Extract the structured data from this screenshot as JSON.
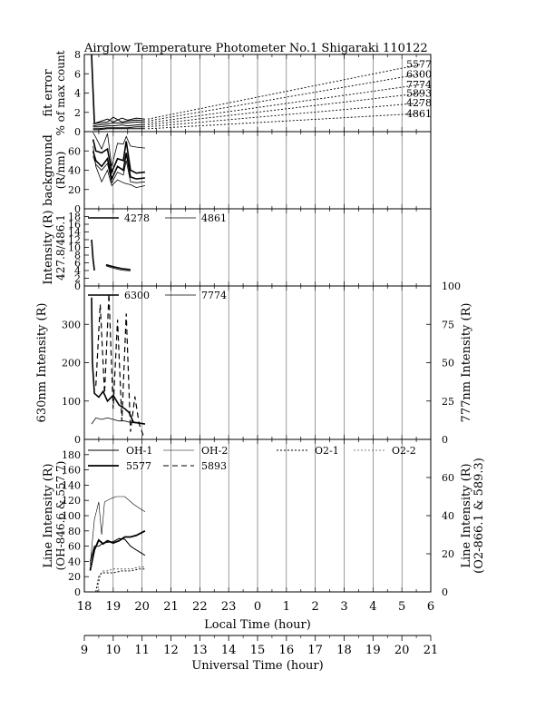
{
  "title": "Airglow Temperature Photometer No.1  Shigaraki  110122",
  "chart_data": [
    {
      "name": "fit-error",
      "type": "line",
      "ylabel": [
        "fit error",
        "% of max count"
      ],
      "ylim": [
        0,
        8
      ],
      "yticks": [
        0,
        2,
        4,
        6,
        8
      ],
      "series": [
        {
          "name": "5577",
          "x": [
            18.3,
            18.5,
            18.8,
            19.0,
            19.3,
            19.5,
            19.8,
            20.1
          ],
          "y": [
            0.8,
            1.0,
            1.3,
            1.0,
            1.4,
            1.2,
            1.4,
            1.3
          ],
          "extrap": [
            [
              20.2,
              1.3
            ],
            [
              29.7,
              7.0
            ]
          ]
        },
        {
          "name": "6300",
          "x": [
            18.3,
            18.5,
            18.8,
            19.0,
            19.3,
            19.5,
            19.8,
            20.1
          ],
          "y": [
            0.8,
            0.9,
            1.0,
            1.5,
            1.0,
            1.1,
            1.2,
            1.1
          ],
          "extrap": [
            [
              20.2,
              1.1
            ],
            [
              29.7,
              6.0
            ]
          ]
        },
        {
          "name": "7774",
          "x": [
            18.3,
            18.5,
            18.8,
            19.0,
            19.3,
            19.5,
            19.8,
            20.1
          ],
          "y": [
            0.6,
            0.7,
            0.8,
            0.9,
            0.9,
            0.9,
            1.0,
            0.9
          ],
          "extrap": [
            [
              20.2,
              0.9
            ],
            [
              29.7,
              4.9
            ]
          ]
        },
        {
          "name": "5893",
          "x": [
            18.3,
            18.5,
            18.8,
            19.0,
            19.3,
            19.5,
            19.8,
            20.1
          ],
          "y": [
            0.5,
            0.5,
            0.6,
            0.6,
            0.7,
            0.6,
            0.7,
            0.7
          ],
          "extrap": [
            [
              20.2,
              0.7
            ],
            [
              29.7,
              4.0
            ]
          ]
        },
        {
          "name": "4278",
          "x": [
            18.3,
            18.5,
            18.8,
            19.0,
            19.3,
            19.5,
            19.8,
            20.1
          ],
          "y": [
            0.3,
            0.3,
            0.4,
            0.4,
            0.4,
            0.4,
            0.5,
            0.5
          ],
          "extrap": [
            [
              20.2,
              0.5
            ],
            [
              29.7,
              3.0
            ]
          ]
        },
        {
          "name": "4861",
          "x": [
            18.3,
            18.5,
            18.8,
            19.0,
            19.3,
            19.5,
            19.8,
            20.1
          ],
          "y": [
            0.2,
            0.2,
            0.3,
            0.3,
            0.3,
            0.3,
            0.3,
            0.3
          ],
          "extrap": [
            [
              20.2,
              0.3
            ],
            [
              29.7,
              1.9
            ]
          ]
        }
      ],
      "spike": {
        "x": [
          18.25,
          18.27,
          18.35
        ],
        "y": [
          8,
          6.5,
          0.9
        ]
      }
    },
    {
      "name": "background",
      "type": "line",
      "ylabel": [
        "background",
        "(R/nm)"
      ],
      "ylim": [
        0,
        80
      ],
      "yticks": [
        0,
        20,
        40,
        60
      ],
      "series": [
        {
          "x": [
            18.3,
            18.4,
            18.6,
            18.8,
            18.95,
            19.15,
            19.35,
            19.45,
            19.6,
            19.8,
            20.1
          ],
          "y": [
            79,
            74,
            62,
            78,
            44,
            68,
            67,
            75,
            65,
            64,
            63
          ],
          "width": 0.8
        },
        {
          "x": [
            18.3,
            18.4,
            18.6,
            18.8,
            18.95,
            19.15,
            19.35,
            19.45,
            19.6,
            19.8,
            20.1
          ],
          "y": [
            72,
            60,
            58,
            62,
            38,
            52,
            50,
            70,
            40,
            37,
            38
          ],
          "width": 1.6
        },
        {
          "x": [
            18.3,
            18.4,
            18.6,
            18.8,
            18.95,
            19.15,
            19.35,
            19.45,
            19.6,
            19.8,
            20.1
          ],
          "y": [
            60,
            50,
            44,
            52,
            31,
            44,
            40,
            58,
            33,
            31,
            32
          ],
          "width": 1.6
        },
        {
          "x": [
            18.3,
            18.4,
            18.6,
            18.8,
            18.95,
            19.15,
            19.35,
            19.45,
            19.6,
            19.8,
            20.1
          ],
          "y": [
            55,
            46,
            40,
            47,
            27,
            38,
            35,
            50,
            28,
            27,
            28
          ],
          "width": 0.8
        },
        {
          "x": [
            18.3,
            18.4,
            18.6,
            18.8,
            18.95,
            19.15,
            19.35,
            19.45,
            19.6,
            19.8,
            20.1
          ],
          "y": [
            65,
            44,
            28,
            40,
            24,
            30,
            27,
            26,
            25,
            22,
            24
          ],
          "width": 0.8
        }
      ]
    },
    {
      "name": "intensity-427-486",
      "type": "line",
      "ylabel": [
        "Intensity (R)",
        "427.8/486.1"
      ],
      "ylim": [
        0,
        20
      ],
      "yticks": [
        0,
        2,
        4,
        6,
        8,
        10,
        12,
        14,
        16,
        18
      ],
      "legend": [
        {
          "name": "4278",
          "width": 1.6
        },
        {
          "name": "4861",
          "width": 0.8
        }
      ],
      "series": [
        {
          "name": "4278",
          "x": [
            18.25,
            18.3,
            18.35
          ],
          "y": [
            12,
            7,
            4
          ],
          "width": 1.6
        },
        {
          "name": "4278",
          "x": [
            18.75,
            19.0,
            19.3,
            19.6
          ],
          "y": [
            5.5,
            5.0,
            4.5,
            4.2
          ],
          "width": 1.6
        },
        {
          "name": "4861",
          "x": [
            18.75,
            19.0,
            19.3,
            19.6
          ],
          "y": [
            5.2,
            4.6,
            4.1,
            3.9
          ],
          "width": 0.8
        }
      ]
    },
    {
      "name": "intensity-630-777",
      "type": "line",
      "ylabel": "630nm Intensity (R)",
      "ylabel_right": "777nm Intensity (R)",
      "ylim": [
        0,
        400
      ],
      "yticks": [
        0,
        100,
        200,
        300
      ],
      "ylim_right": [
        0,
        100
      ],
      "yticks_right": [
        0,
        25,
        50,
        75,
        100
      ],
      "legend": [
        {
          "name": "6300",
          "width": 1.6
        },
        {
          "name": "7774",
          "width": 0.8
        }
      ],
      "series": [
        {
          "name": "6300",
          "x": [
            18.25,
            18.28,
            18.35,
            18.5,
            18.65,
            18.8,
            19.0,
            19.2,
            19.4,
            19.55,
            19.7,
            20.1
          ],
          "y": [
            370,
            200,
            120,
            110,
            125,
            100,
            115,
            90,
            80,
            70,
            45,
            40
          ],
          "width": 1.6,
          "axis": "left"
        },
        {
          "name": "7774",
          "x": [
            18.25,
            18.4,
            18.6,
            18.8,
            19.0,
            19.2,
            19.4,
            19.6,
            20.1
          ],
          "y": [
            10,
            14,
            13,
            14,
            13,
            12,
            12,
            11,
            10
          ],
          "width": 0.8,
          "axis": "right"
        },
        {
          "name": "7774-dashed",
          "x": [
            18.4,
            18.55,
            18.7,
            18.85,
            19.0,
            19.15,
            19.3,
            19.45,
            19.6,
            19.75,
            19.9,
            20.05
          ],
          "y": [
            35,
            88,
            30,
            95,
            20,
            78,
            12,
            82,
            5,
            28,
            10,
            2
          ],
          "width": 1.2,
          "axis": "right",
          "dash": true
        }
      ]
    },
    {
      "name": "line-intensity",
      "type": "line",
      "ylabel": [
        "Line Intensity (R)",
        "(OH-846.6 & 557.7)"
      ],
      "ylabel_right": [
        "Line Intensity (R)",
        "(O2-866.1 & 589.3)"
      ],
      "ylim": [
        0,
        200
      ],
      "yticks": [
        0,
        20,
        40,
        60,
        80,
        100,
        120,
        140,
        160,
        180
      ],
      "ylim_right": [
        0,
        80
      ],
      "yticks_right": [
        0,
        20,
        40,
        60
      ],
      "legend": [
        {
          "name": "OH-1",
          "width": 1.0
        },
        {
          "name": "OH-2",
          "width": 0.6
        },
        {
          "name": "O2-1",
          "width": 1.0,
          "dot": true
        },
        {
          "name": "O2-2",
          "width": 0.6,
          "dot": true
        },
        {
          "name": "5577",
          "width": 1.8
        },
        {
          "name": "5893",
          "width": 1.0,
          "dash": true
        }
      ],
      "series": [
        {
          "name": "OH-1",
          "x": [
            18.2,
            18.35,
            18.5,
            18.65,
            18.8,
            19.0,
            19.2,
            19.4,
            19.6,
            19.8,
            20.1
          ],
          "y": [
            40,
            60,
            60,
            64,
            65,
            66,
            70,
            69,
            60,
            55,
            48
          ],
          "width": 1.0
        },
        {
          "name": "OH-2",
          "x": [
            18.2,
            18.35,
            18.5,
            18.6,
            18.7,
            18.9,
            19.1,
            19.4,
            19.7,
            19.9,
            20.1
          ],
          "y": [
            35,
            95,
            118,
            75,
            118,
            122,
            125,
            125,
            115,
            110,
            105
          ],
          "width": 0.6
        },
        {
          "name": "5577",
          "x": [
            18.2,
            18.35,
            18.5,
            18.65,
            18.8,
            19.0,
            19.2,
            19.4,
            19.6,
            19.8,
            20.1
          ],
          "y": [
            28,
            55,
            68,
            63,
            67,
            64,
            67,
            72,
            72,
            74,
            80
          ],
          "width": 1.8
        },
        {
          "name": "O2-1",
          "x": [
            18.4,
            18.5,
            18.6,
            18.8,
            19.0,
            19.3,
            19.6,
            19.9,
            20.1
          ],
          "y": [
            0,
            8,
            10,
            10,
            10,
            11,
            11,
            12,
            12
          ],
          "width": 1.0,
          "dot": true,
          "axis": "right"
        },
        {
          "name": "O2-2",
          "x": [
            18.45,
            18.55,
            18.65,
            18.8,
            19.0,
            19.3,
            19.6,
            19.9,
            20.1
          ],
          "y": [
            0,
            9,
            11,
            11,
            12,
            12,
            12,
            13,
            13
          ],
          "width": 0.6,
          "dot": true,
          "axis": "right"
        }
      ]
    }
  ],
  "axes": {
    "local_time": {
      "label": "Local Time (hour)",
      "ticks": [
        "18",
        "19",
        "20",
        "21",
        "22",
        "23",
        "0",
        "1",
        "2",
        "3",
        "4",
        "5",
        "6"
      ]
    },
    "universal_time": {
      "label": "Universal Time (hour)",
      "ticks": [
        "9",
        "10",
        "11",
        "12",
        "13",
        "14",
        "15",
        "16",
        "17",
        "18",
        "19",
        "20",
        "21"
      ]
    },
    "xlim": [
      18,
      30
    ]
  }
}
